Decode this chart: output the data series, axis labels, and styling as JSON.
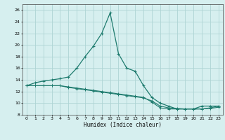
{
  "xlabel": "Humidex (Indice chaleur)",
  "bg_color": "#d6efef",
  "grid_color": "#aed4d4",
  "line_color": "#1e7b6e",
  "xlim": [
    -0.5,
    23.5
  ],
  "ylim": [
    8,
    27
  ],
  "xticks": [
    0,
    1,
    2,
    3,
    4,
    5,
    6,
    7,
    8,
    9,
    10,
    11,
    12,
    13,
    14,
    15,
    16,
    17,
    18,
    19,
    20,
    21,
    22,
    23
  ],
  "yticks": [
    8,
    10,
    12,
    14,
    16,
    18,
    20,
    22,
    24,
    26
  ],
  "series1_x": [
    0,
    1,
    2,
    3,
    4,
    5,
    6,
    7,
    8,
    9,
    10,
    11,
    12,
    13,
    14,
    15,
    16,
    17,
    18,
    19,
    20,
    21,
    22,
    23
  ],
  "series1_y": [
    13,
    13.5,
    13.8,
    14,
    14.2,
    14.5,
    16,
    18,
    19.8,
    22,
    25.5,
    18.5,
    16,
    15.5,
    13,
    11,
    10,
    9.5,
    9,
    9,
    9,
    9.5,
    9.5,
    9.5
  ],
  "series2_x": [
    0,
    1,
    2,
    3,
    4,
    5,
    6,
    7,
    8,
    9,
    10,
    11,
    12,
    13,
    14,
    15,
    16,
    17,
    18,
    19,
    20,
    21,
    22,
    23
  ],
  "series2_y": [
    13,
    13,
    13,
    13,
    13,
    12.8,
    12.6,
    12.4,
    12.2,
    12,
    11.8,
    11.6,
    11.4,
    11.2,
    11,
    10.2,
    9.2,
    9.0,
    9.0,
    9.0,
    9.0,
    9.0,
    9.2,
    9.5
  ],
  "series3_x": [
    0,
    1,
    2,
    3,
    4,
    5,
    6,
    7,
    8,
    9,
    10,
    11,
    12,
    13,
    14,
    15,
    16,
    17,
    18,
    19,
    20,
    21,
    22,
    23
  ],
  "series3_y": [
    13,
    13,
    13,
    13,
    13,
    12.7,
    12.5,
    12.3,
    12.1,
    11.9,
    11.7,
    11.5,
    11.3,
    11.1,
    10.9,
    10.4,
    9.5,
    9.2,
    9.1,
    9.0,
    9.0,
    9.0,
    9.1,
    9.3
  ]
}
